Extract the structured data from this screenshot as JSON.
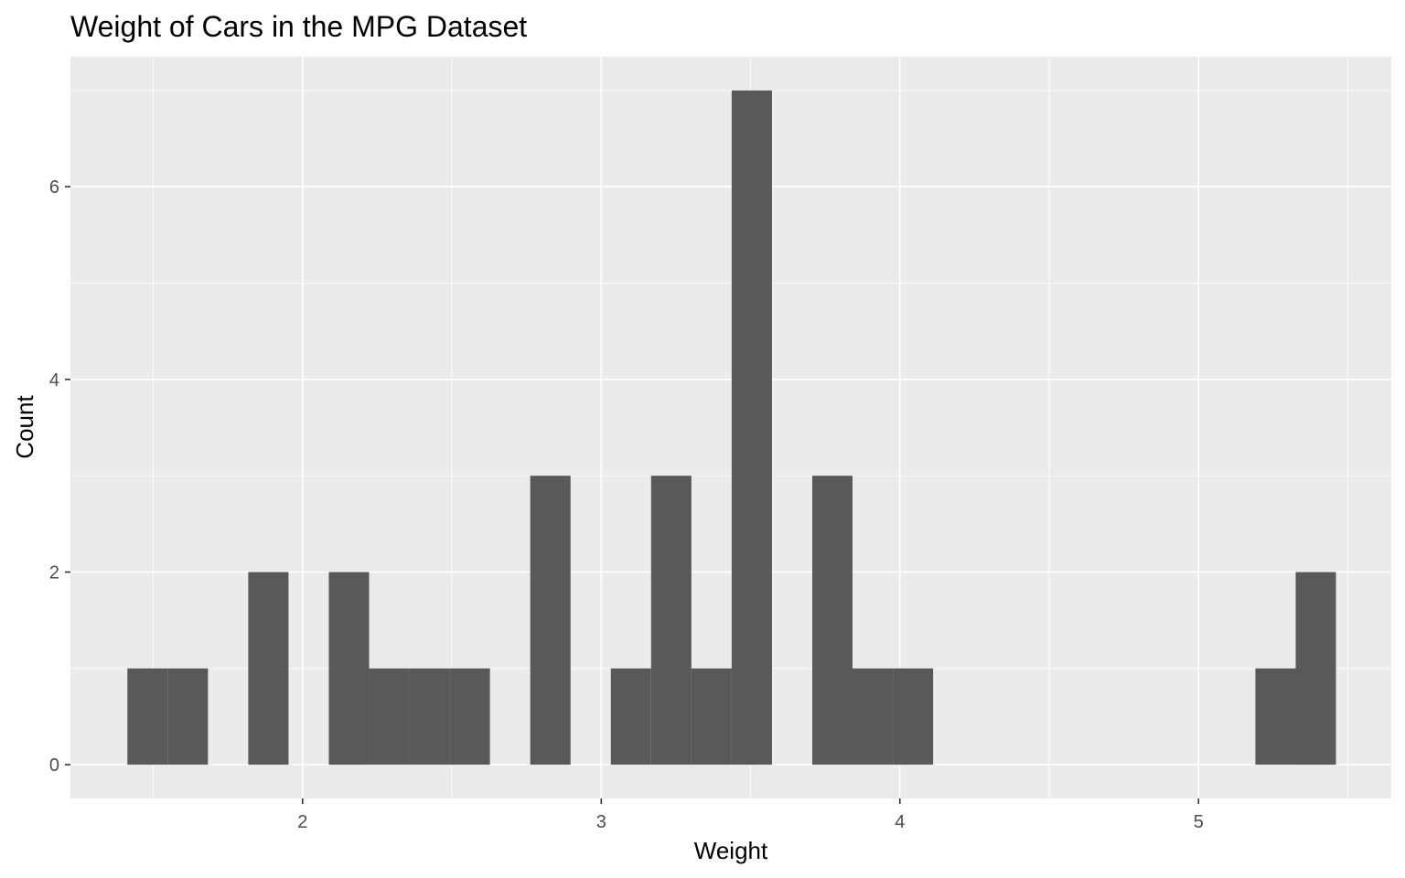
{
  "chart_data": {
    "type": "bar",
    "title": "Weight of Cars in the MPG Dataset",
    "xlabel": "Weight",
    "ylabel": "Count",
    "xlim": [
      1.2226,
      5.6455
    ],
    "ylim": [
      -0.35,
      7.35
    ],
    "x_ticks": [
      2,
      3,
      4,
      5
    ],
    "x_tick_labels": [
      "2",
      "3",
      "4",
      "5"
    ],
    "x_minor_ticks": [
      1.5,
      2.5,
      3.5,
      4.5,
      5.5
    ],
    "y_ticks": [
      0,
      2,
      4,
      6
    ],
    "y_tick_labels": [
      "0",
      "2",
      "4",
      "6"
    ],
    "y_minor_ticks": [
      1,
      3,
      5,
      7
    ],
    "bin_width": 0.1349,
    "bin_starts": [
      1.4133,
      1.5482,
      1.6831,
      1.818,
      1.9529,
      2.0878,
      2.2227,
      2.3576,
      2.4925,
      2.6274,
      2.7623,
      2.8972,
      3.0321,
      3.167,
      3.3019,
      3.4368,
      3.5717,
      3.7066,
      3.8415,
      3.9764,
      4.1113,
      4.2462,
      4.3811,
      4.516,
      4.6509,
      4.7858,
      4.9207,
      5.0556,
      5.1905,
      5.3254
    ],
    "values": [
      1,
      1,
      0,
      2,
      0,
      2,
      1,
      1,
      1,
      0,
      3,
      0,
      1,
      3,
      1,
      7,
      0,
      3,
      1,
      1,
      0,
      0,
      0,
      0,
      0,
      0,
      0,
      0,
      1,
      2
    ],
    "grid": true,
    "colors": {
      "panel_background": "#EBEBEB",
      "grid": "#FFFFFF",
      "bar_fill": "#595959",
      "tick_label": "#4D4D4D",
      "text": "#000000"
    }
  }
}
